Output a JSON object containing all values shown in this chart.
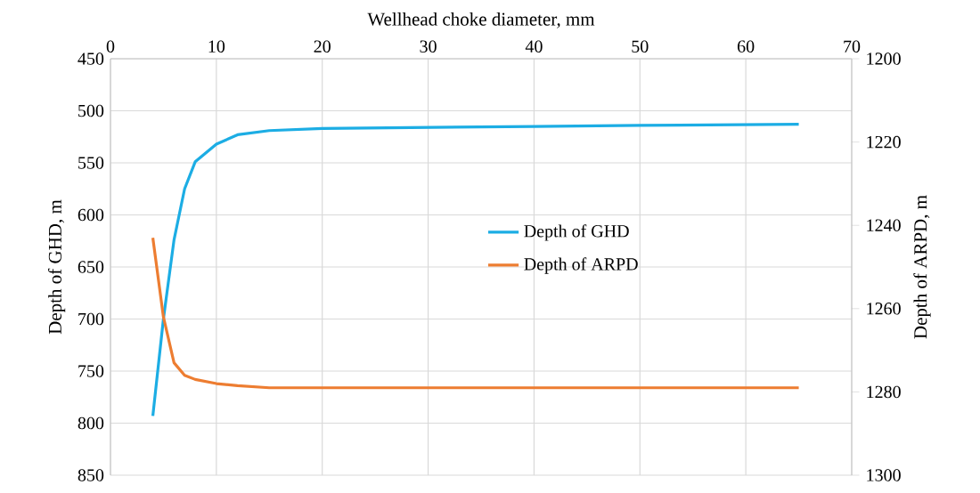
{
  "chart_data": {
    "type": "line",
    "xlabel": "Wellhead choke diameter, mm",
    "ylabel": "Depth of GHD, m",
    "y2label": "Depth of ARPD, m",
    "xlim": [
      0,
      70
    ],
    "xticks": [
      0,
      10,
      20,
      30,
      40,
      50,
      60,
      70
    ],
    "ylim": [
      850,
      450
    ],
    "yticks": [
      450,
      500,
      550,
      600,
      650,
      700,
      750,
      800,
      850
    ],
    "y2lim": [
      1300,
      1200
    ],
    "y2ticks": [
      1200,
      1220,
      1240,
      1260,
      1280,
      1300
    ],
    "grid": true,
    "legend": "right",
    "marker": "none",
    "line_style": "solid",
    "series": [
      {
        "name": "Depth of GHD",
        "color": "#1cade4",
        "x": [
          4,
          5,
          6,
          7,
          8,
          10,
          12,
          15,
          20,
          30,
          40,
          50,
          65
        ],
        "values": [
          793,
          700,
          624,
          575,
          549,
          532,
          523,
          519,
          517,
          516,
          515,
          514,
          513
        ]
      },
      {
        "name": "Depth of ARPD",
        "color": "#ed7d31",
        "axis": "y2",
        "x": [
          4,
          5,
          6,
          7,
          8,
          10,
          12,
          15,
          20,
          30,
          40,
          50,
          65
        ],
        "values": [
          1243,
          1262,
          1273,
          1276,
          1277,
          1278,
          1278.5,
          1279,
          1279,
          1279,
          1279,
          1279,
          1279
        ]
      }
    ]
  }
}
